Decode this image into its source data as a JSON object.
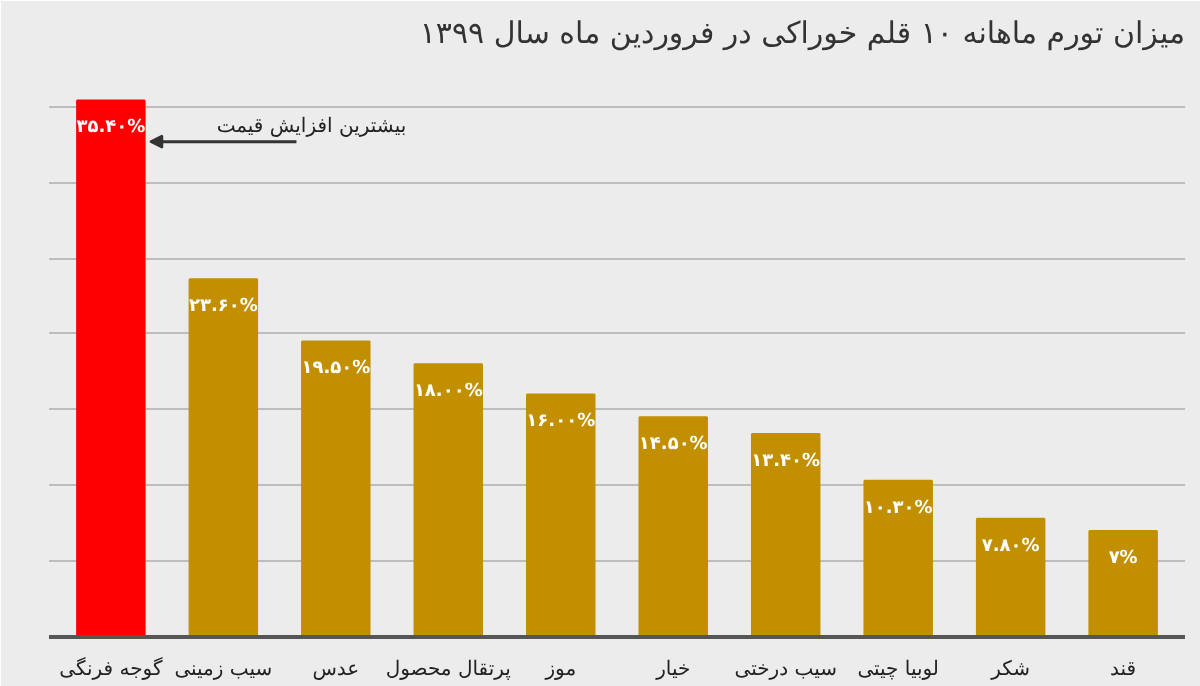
{
  "chart_data": {
    "type": "bar",
    "title": "میزان تورم ماهانه ۱۰ قلم خوراکی در فروردین ماه سال ۱۳۹۹",
    "categories": [
      "گوجه فرنگی",
      "سیب زمینی",
      "عدس",
      "پرتقال محصول",
      "موز",
      "خیار",
      "سیب درختی",
      "لوبیا چیتی",
      "شکر",
      "قند"
    ],
    "values": [
      35.4,
      23.6,
      19.5,
      18.0,
      16.0,
      14.5,
      13.4,
      10.3,
      7.8,
      7
    ],
    "colors": [
      "#ff0000",
      "#c28f00",
      "#c28f00",
      "#c28f00",
      "#c28f00",
      "#c28f00",
      "#c28f00",
      "#c28f00",
      "#c28f00",
      "#c28f00"
    ],
    "value_labels": [
      "۳۵.۴۰%",
      "۲۳.۶۰%",
      "۱۹.۵۰%",
      "۱۸.۰۰%",
      "۱۶.۰۰%",
      "۱۴.۵۰%",
      "۱۳.۴۰%",
      "۱۰.۳۰%",
      "۷.۸۰%",
      "۷%"
    ],
    "annotations": [
      "بیشترین افزایش قیمت"
    ],
    "ylim": [
      0,
      38
    ],
    "yticks": [
      {
        "value": 0,
        "label": null
      },
      {
        "value": 5,
        "label": null
      },
      {
        "value": 10,
        "label": null
      },
      {
        "value": 15,
        "label": null
      },
      {
        "value": 20,
        "label": null
      },
      {
        "value": 25,
        "label": null
      },
      {
        "value": 30,
        "label": null
      },
      {
        "value": 35,
        "label": null
      }
    ],
    "grid": "y",
    "tick_labels": "x"
  }
}
